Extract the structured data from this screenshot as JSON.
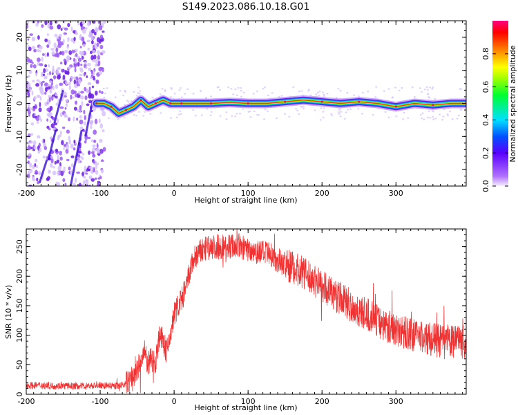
{
  "title": "S149.2023.086.10.18.G01",
  "chart_data": [
    {
      "type": "heatmap",
      "xlabel": "Height of straight line (km)",
      "ylabel": "Frequency (Hz)",
      "xlim": [
        -200,
        395
      ],
      "ylim": [
        -25,
        25
      ],
      "x_ticks": [
        -200,
        -100,
        0,
        100,
        200,
        300
      ],
      "y_ticks": [
        -20,
        -10,
        0,
        10,
        20
      ],
      "colorbar": {
        "label": "Normalized spectral amplitude",
        "range": [
          0,
          1
        ],
        "ticks": [
          0.0,
          0.2,
          0.4,
          0.6,
          0.8
        ]
      },
      "signal_track": {
        "x": [
          -105,
          -95,
          -85,
          -75,
          -65,
          -55,
          -45,
          -35,
          -25,
          -15,
          -5,
          0,
          10,
          25,
          50,
          75,
          100,
          125,
          150,
          175,
          200,
          225,
          250,
          275,
          300,
          325,
          350,
          375,
          395
        ],
        "y": [
          0,
          0,
          -1,
          -3,
          -2,
          -1,
          1,
          -1,
          0,
          1,
          0,
          0,
          0,
          0,
          0,
          0.3,
          0,
          0,
          0.5,
          1,
          0.5,
          0,
          0.5,
          0,
          -1,
          0,
          -0.5,
          0,
          0
        ]
      },
      "scatter_region_x": [
        -200,
        -100
      ],
      "grid": false
    },
    {
      "type": "line",
      "xlabel": "Height of straight line (km)",
      "ylabel": "SNR (10 * v/v)",
      "xlim": [
        -200,
        395
      ],
      "ylim": [
        0,
        280
      ],
      "x_ticks": [
        -200,
        -100,
        0,
        100,
        200,
        300
      ],
      "y_ticks": [
        0,
        50,
        100,
        150,
        200,
        250
      ],
      "color": "#f03232",
      "series": [
        {
          "x": [
            -200,
            -180,
            -160,
            -140,
            -120,
            -100,
            -80,
            -65,
            -60,
            -55,
            -50,
            -45,
            -40,
            -35,
            -30,
            -25,
            -20,
            -15,
            -10,
            -5,
            0,
            5,
            10,
            15,
            20,
            25,
            30,
            40,
            50,
            60,
            70,
            80,
            90,
            100,
            110,
            120,
            130,
            140,
            150,
            160,
            170,
            180,
            190,
            200,
            210,
            220,
            230,
            240,
            250,
            260,
            270,
            280,
            290,
            300,
            310,
            320,
            330,
            340,
            350,
            360,
            370,
            380,
            395
          ],
          "values": [
            15,
            15,
            14,
            14,
            14,
            15,
            14,
            17,
            25,
            30,
            40,
            55,
            70,
            50,
            60,
            55,
            100,
            90,
            70,
            100,
            135,
            150,
            160,
            175,
            200,
            225,
            235,
            245,
            248,
            250,
            250,
            252,
            250,
            245,
            243,
            240,
            235,
            228,
            220,
            215,
            210,
            200,
            193,
            185,
            175,
            165,
            160,
            148,
            140,
            135,
            130,
            120,
            115,
            110,
            105,
            100,
            98,
            95,
            93,
            90,
            90,
            88,
            88
          ],
          "noise_amplitude": 22
        }
      ],
      "grid": false
    }
  ]
}
